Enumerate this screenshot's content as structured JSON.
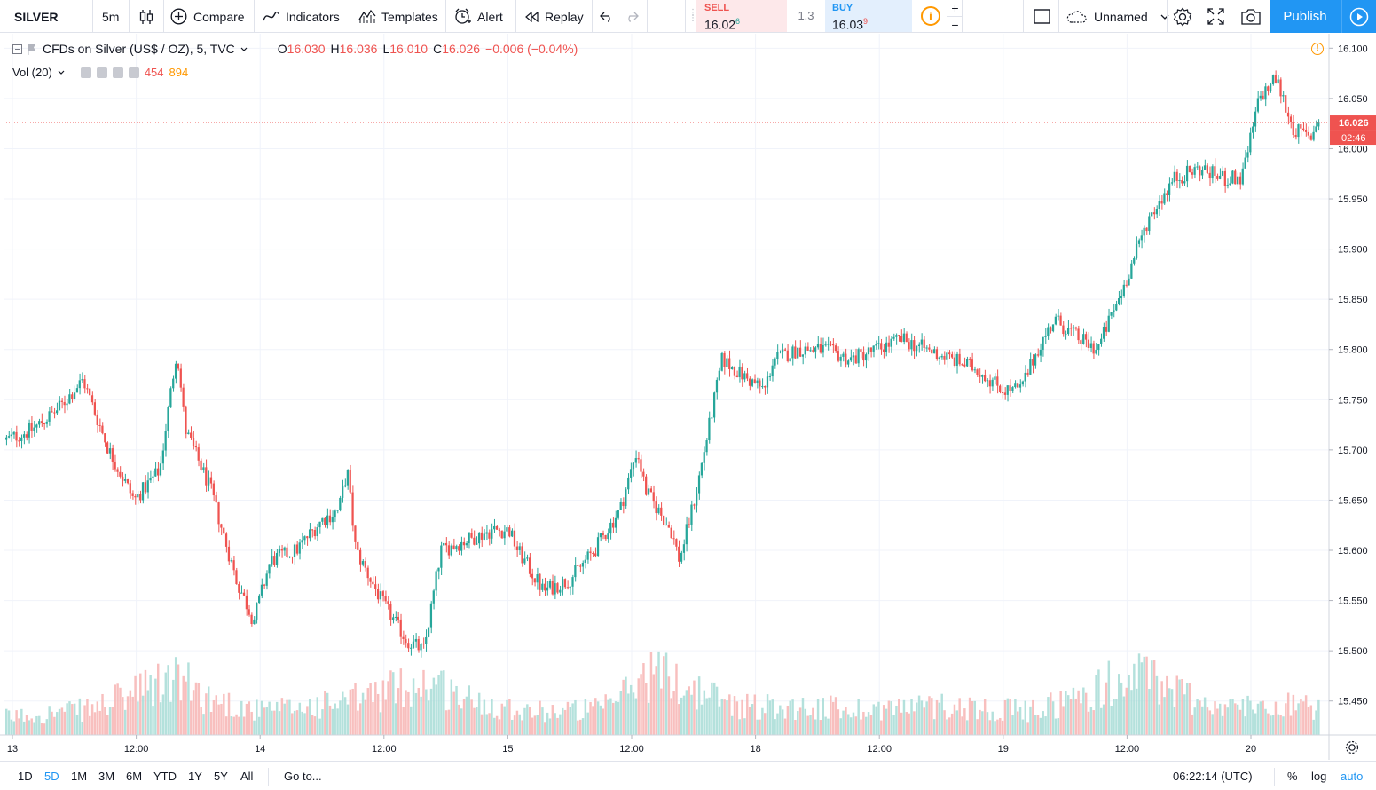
{
  "toolbar": {
    "symbol": "SILVER",
    "interval": "5m",
    "compare_label": "Compare",
    "indicators_label": "Indicators",
    "templates_label": "Templates",
    "alert_label": "Alert",
    "replay_label": "Replay",
    "layout_name": "Unnamed",
    "publish_label": "Publish"
  },
  "trade": {
    "sell_label": "SELL",
    "sell_price": "16.02",
    "sell_sup": "6",
    "spread": "1.3",
    "buy_label": "BUY",
    "buy_price": "16.03",
    "buy_sup": "9",
    "plus": "+",
    "minus": "−"
  },
  "legend": {
    "title": "CFDs on Silver (US$ / OZ), 5, TVC",
    "o_key": "O",
    "o_val": "16.030",
    "h_key": "H",
    "h_val": "16.036",
    "l_key": "L",
    "l_val": "16.010",
    "c_key": "C",
    "c_val": "16.026",
    "change": "−0.006 (−0.04%)",
    "vol_label": "Vol (20)",
    "vol_val1": "454",
    "vol_val2": "894"
  },
  "colors": {
    "up": "#26a69a",
    "down": "#ef5350",
    "vol_up": "#a7dcd6",
    "vol_down": "#f7b4b3",
    "accent": "#2196f3"
  },
  "chart_data": {
    "type": "candlestick",
    "title": "CFDs on Silver (US$ / OZ), 5, TVC",
    "interval": "5",
    "ylim": [
      15.425,
      16.11
    ],
    "y_ticks": [
      "16.100",
      "16.050",
      "16.000",
      "15.950",
      "15.900",
      "15.850",
      "15.800",
      "15.750",
      "15.700",
      "15.650",
      "15.600",
      "15.550",
      "15.500",
      "15.450"
    ],
    "x_ticks": [
      "13",
      "12:00",
      "14",
      "12:00",
      "15",
      "12:00",
      "18",
      "12:00",
      "19",
      "12:00",
      "20"
    ],
    "last_price": "16.026",
    "countdown": "02:46",
    "price_path": [
      [
        0,
        15.71
      ],
      [
        3,
        15.72
      ],
      [
        6,
        15.74
      ],
      [
        9,
        15.77
      ],
      [
        12,
        15.7
      ],
      [
        15,
        15.65
      ],
      [
        18,
        15.68
      ],
      [
        20,
        15.8
      ],
      [
        21,
        15.72
      ],
      [
        24,
        15.66
      ],
      [
        27,
        15.57
      ],
      [
        29,
        15.53
      ],
      [
        31,
        15.59
      ],
      [
        34,
        15.6
      ],
      [
        37,
        15.63
      ],
      [
        39,
        15.64
      ],
      [
        40,
        15.68
      ],
      [
        41,
        15.6
      ],
      [
        44,
        15.55
      ],
      [
        47,
        15.51
      ],
      [
        49,
        15.5
      ],
      [
        51,
        15.6
      ],
      [
        54,
        15.61
      ],
      [
        57,
        15.62
      ],
      [
        59,
        15.62
      ],
      [
        60,
        15.6
      ],
      [
        63,
        15.56
      ],
      [
        66,
        15.57
      ],
      [
        69,
        15.6
      ],
      [
        72,
        15.64
      ],
      [
        74,
        15.7
      ],
      [
        75,
        15.66
      ],
      [
        78,
        15.62
      ],
      [
        79,
        15.59
      ],
      [
        81,
        15.66
      ],
      [
        84,
        15.79
      ],
      [
        87,
        15.77
      ],
      [
        89,
        15.76
      ],
      [
        90,
        15.79
      ],
      [
        93,
        15.8
      ],
      [
        96,
        15.8
      ],
      [
        99,
        15.79
      ],
      [
        102,
        15.8
      ],
      [
        105,
        15.81
      ],
      [
        108,
        15.8
      ],
      [
        111,
        15.79
      ],
      [
        114,
        15.78
      ],
      [
        117,
        15.76
      ],
      [
        119,
        15.76
      ],
      [
        121,
        15.8
      ],
      [
        123,
        15.83
      ],
      [
        126,
        15.81
      ],
      [
        128,
        15.8
      ],
      [
        131,
        15.86
      ],
      [
        134,
        15.93
      ],
      [
        137,
        15.97
      ],
      [
        140,
        15.98
      ],
      [
        143,
        15.97
      ],
      [
        145,
        15.97
      ],
      [
        147,
        16.05
      ],
      [
        149,
        16.07
      ],
      [
        151,
        16.02
      ],
      [
        153,
        16.01
      ],
      [
        154,
        16.03
      ]
    ],
    "volume_profile": [
      [
        0,
        0.15
      ],
      [
        10,
        0.22
      ],
      [
        20,
        0.48
      ],
      [
        24,
        0.3
      ],
      [
        30,
        0.2
      ],
      [
        40,
        0.28
      ],
      [
        46,
        0.4
      ],
      [
        50,
        0.45
      ],
      [
        54,
        0.3
      ],
      [
        62,
        0.2
      ],
      [
        70,
        0.22
      ],
      [
        76,
        0.55
      ],
      [
        80,
        0.4
      ],
      [
        86,
        0.25
      ],
      [
        100,
        0.22
      ],
      [
        110,
        0.25
      ],
      [
        120,
        0.2
      ],
      [
        126,
        0.32
      ],
      [
        130,
        0.45
      ],
      [
        134,
        0.5
      ],
      [
        138,
        0.35
      ],
      [
        143,
        0.22
      ],
      [
        150,
        0.28
      ],
      [
        154,
        0.2
      ]
    ]
  },
  "bottom": {
    "ranges": [
      "1D",
      "5D",
      "1M",
      "3M",
      "6M",
      "YTD",
      "1Y",
      "5Y",
      "All"
    ],
    "active_range": "5D",
    "goto_label": "Go to...",
    "clock": "06:22:14 (UTC)",
    "percent_label": "%",
    "log_label": "log",
    "auto_label": "auto"
  }
}
